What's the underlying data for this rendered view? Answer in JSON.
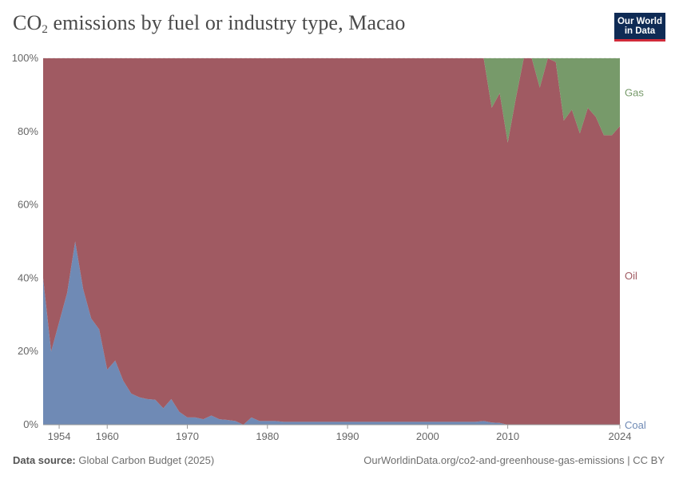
{
  "header": {
    "title_main": "CO",
    "title_sub": "2",
    "title_rest": " emissions by fuel or industry type, Macao",
    "logo_line1": "Our World",
    "logo_line2": "in Data"
  },
  "footer": {
    "source_label": "Data source:",
    "source_value": " Global Carbon Budget (2025)",
    "url": "OurWorldinData.org/co2-and-greenhouse-gas-emissions | CC BY"
  },
  "colors": {
    "coal": "#6f8ab5",
    "oil": "#a05a62",
    "gas": "#779a6a",
    "axis_text": "#666666",
    "grid": "#dddddd"
  },
  "chart_data": {
    "type": "area",
    "stacked": "percent",
    "title": "CO2 emissions by fuel or industry type, Macao",
    "xlim": [
      1952,
      2024
    ],
    "ylim": [
      0,
      100
    ],
    "x_ticks": [
      1954,
      1960,
      1970,
      1980,
      1990,
      2000,
      2010,
      2024
    ],
    "y_ticks": [
      0,
      20,
      40,
      60,
      80,
      100
    ],
    "y_tick_labels": [
      "0%",
      "20%",
      "40%",
      "60%",
      "80%",
      "100%"
    ],
    "x": [
      1952,
      1953,
      1954,
      1955,
      1956,
      1957,
      1958,
      1959,
      1960,
      1961,
      1962,
      1963,
      1964,
      1965,
      1966,
      1967,
      1968,
      1969,
      1970,
      1971,
      1972,
      1973,
      1974,
      1975,
      1976,
      1977,
      1978,
      1979,
      1980,
      1981,
      1982,
      1983,
      1984,
      1985,
      1986,
      1987,
      1988,
      1989,
      1990,
      1991,
      1992,
      1993,
      1994,
      1995,
      1996,
      1997,
      1998,
      1999,
      2000,
      2001,
      2002,
      2003,
      2004,
      2005,
      2006,
      2007,
      2008,
      2009,
      2010,
      2011,
      2012,
      2013,
      2014,
      2015,
      2016,
      2017,
      2018,
      2019,
      2020,
      2021,
      2022,
      2023,
      2024
    ],
    "series": [
      {
        "name": "Coal",
        "values": [
          40,
          20,
          28,
          36,
          50,
          37,
          29,
          26,
          15,
          17.5,
          12,
          8.5,
          7.5,
          7,
          6.8,
          4.5,
          7,
          3.5,
          2,
          2,
          1.5,
          2.5,
          1.5,
          1.3,
          1,
          0,
          2,
          1,
          1,
          1,
          0.8,
          0.8,
          0.8,
          0.8,
          0.8,
          0.8,
          0.8,
          0.8,
          0.8,
          0.8,
          0.8,
          0.8,
          0.8,
          0.8,
          0.8,
          0.8,
          0.8,
          0.8,
          0.8,
          0.8,
          0.8,
          0.8,
          0.8,
          0.8,
          0.8,
          1,
          0.6,
          0.5,
          0,
          0,
          0,
          0,
          0,
          0,
          0,
          0,
          0,
          0,
          0,
          0,
          0,
          0,
          0
        ]
      },
      {
        "name": "Oil",
        "values": [
          60,
          80,
          72,
          64,
          50,
          63,
          71,
          74,
          85,
          82.5,
          88,
          91.5,
          92.5,
          93,
          93.2,
          95.5,
          93,
          96.5,
          98,
          98,
          98.5,
          97.5,
          98.5,
          98.7,
          99,
          100,
          98,
          99,
          99,
          99,
          99.2,
          99.2,
          99.2,
          99.2,
          99.2,
          99.2,
          99.2,
          99.2,
          99.2,
          99.2,
          99.2,
          99.2,
          99.2,
          99.2,
          99.2,
          99.2,
          99.2,
          99.2,
          99.2,
          99.2,
          99.2,
          99.2,
          99.2,
          99.2,
          99.2,
          99,
          85.9,
          90,
          77,
          89,
          100,
          100,
          92,
          100,
          99,
          83,
          86,
          79.5,
          86.5,
          84,
          79,
          79,
          81.5
        ]
      },
      {
        "name": "Gas",
        "values": [
          0,
          0,
          0,
          0,
          0,
          0,
          0,
          0,
          0,
          0,
          0,
          0,
          0,
          0,
          0,
          0,
          0,
          0,
          0,
          0,
          0,
          0,
          0,
          0,
          0,
          0,
          0,
          0,
          0,
          0,
          0,
          0,
          0,
          0,
          0,
          0,
          0,
          0,
          0,
          0,
          0,
          0,
          0,
          0,
          0,
          0,
          0,
          0,
          0,
          0,
          0,
          0,
          0,
          0,
          0,
          0,
          13.5,
          9.5,
          23,
          11,
          0,
          0,
          8,
          0,
          1,
          17,
          14,
          20.5,
          13.5,
          16,
          21,
          21,
          18.5
        ]
      }
    ],
    "legend": [
      "Gas",
      "Oil",
      "Coal"
    ],
    "legend_position": "right"
  }
}
